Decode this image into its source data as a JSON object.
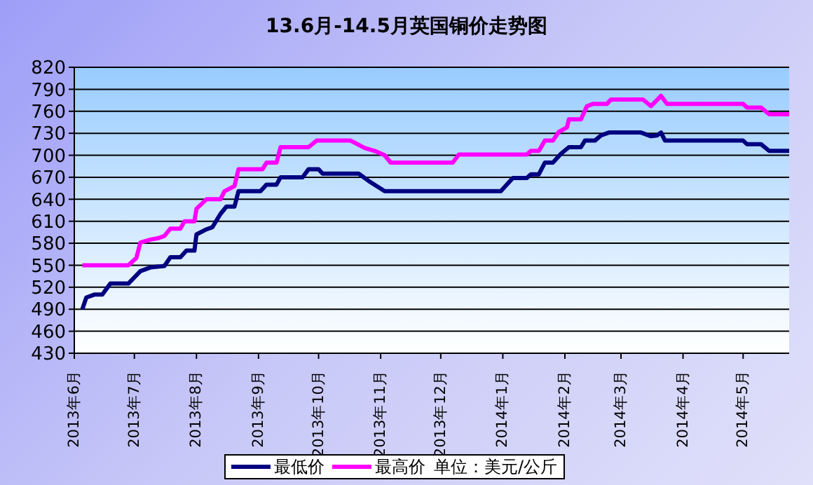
{
  "chart_data": {
    "type": "line",
    "title": "13.6月-14.5月英国铜价走势图",
    "annotations": [
      "单位：美元/公斤"
    ],
    "xlim": [
      "2013-06-01",
      "2014-05-24"
    ],
    "xticks": [
      {
        "value": "2013-06-01",
        "label": "2013年6月"
      },
      {
        "value": "2013-07-01",
        "label": "2013年7月"
      },
      {
        "value": "2013-08-01",
        "label": "2013年8月"
      },
      {
        "value": "2013-09-01",
        "label": "2013年9月"
      },
      {
        "value": "2013-10-01",
        "label": "2013年10月"
      },
      {
        "value": "2013-11-01",
        "label": "2013年11月"
      },
      {
        "value": "2013-12-01",
        "label": "2013年12月"
      },
      {
        "value": "2014-01-01",
        "label": "2014年1月"
      },
      {
        "value": "2014-02-01",
        "label": "2014年2月"
      },
      {
        "value": "2014-03-01",
        "label": "2014年3月"
      },
      {
        "value": "2014-04-01",
        "label": "2014年4月"
      },
      {
        "value": "2014-05-01",
        "label": "2014年5月"
      }
    ],
    "ylim": [
      430,
      820
    ],
    "yticks": [
      430,
      460,
      490,
      520,
      550,
      580,
      610,
      640,
      670,
      700,
      730,
      760,
      790,
      820
    ],
    "grid": "y",
    "legend": "bottom",
    "marker": "none",
    "line_style": "solid",
    "series": [
      {
        "name": "最低价",
        "color": "#000080",
        "x": [
          "2013-06-05",
          "2013-06-07",
          "2013-06-11",
          "2013-06-15",
          "2013-06-19",
          "2013-06-28",
          "2013-07-04",
          "2013-07-09",
          "2013-07-16",
          "2013-07-19",
          "2013-07-24",
          "2013-07-27",
          "2013-07-31",
          "2013-08-01",
          "2013-08-06",
          "2013-08-09",
          "2013-08-13",
          "2013-08-16",
          "2013-08-20",
          "2013-08-22",
          "2013-09-02",
          "2013-09-05",
          "2013-09-10",
          "2013-09-12",
          "2013-09-23",
          "2013-09-26",
          "2013-10-01",
          "2013-10-03",
          "2013-10-21",
          "2013-10-26",
          "2013-11-03",
          "2013-12-31",
          "2014-01-06",
          "2014-01-13",
          "2014-01-15",
          "2014-01-19",
          "2014-01-22",
          "2014-01-26",
          "2014-01-30",
          "2014-02-03",
          "2014-02-09",
          "2014-02-11",
          "2014-02-16",
          "2014-02-19",
          "2014-02-23",
          "2014-03-11",
          "2014-03-16",
          "2014-03-19",
          "2014-03-21",
          "2014-03-23",
          "2014-05-01",
          "2014-05-03",
          "2014-05-10",
          "2014-05-14",
          "2014-05-24"
        ],
        "values": [
          490,
          506,
          510,
          510,
          525,
          525,
          542,
          547,
          549,
          561,
          561,
          570,
          570,
          592,
          599,
          602,
          620,
          630,
          630,
          651,
          651,
          660,
          660,
          670,
          670,
          681,
          681,
          675,
          675,
          665,
          651,
          651,
          669,
          669,
          674,
          674,
          690,
          690,
          702,
          711,
          711,
          720,
          720,
          727,
          731,
          731,
          726,
          727,
          731,
          720,
          720,
          715,
          715,
          706,
          706
        ]
      },
      {
        "name": "最高价",
        "color": "#ff00ff",
        "x": [
          "2013-06-05",
          "2013-06-28",
          "2013-07-02",
          "2013-07-04",
          "2013-07-09",
          "2013-07-13",
          "2013-07-16",
          "2013-07-19",
          "2013-07-24",
          "2013-07-26",
          "2013-07-31",
          "2013-08-01",
          "2013-08-06",
          "2013-08-13",
          "2013-08-15",
          "2013-08-20",
          "2013-08-22",
          "2013-09-03",
          "2013-09-05",
          "2013-09-10",
          "2013-09-12",
          "2013-09-26",
          "2013-09-30",
          "2013-10-17",
          "2013-10-24",
          "2013-10-29",
          "2013-11-03",
          "2013-11-06",
          "2013-11-21",
          "2013-12-07",
          "2013-12-10",
          "2014-01-13",
          "2014-01-15",
          "2014-01-19",
          "2014-01-22",
          "2014-01-26",
          "2014-01-29",
          "2014-02-02",
          "2014-02-03",
          "2014-02-09",
          "2014-02-12",
          "2014-02-15",
          "2014-02-22",
          "2014-02-24",
          "2014-03-12",
          "2014-03-16",
          "2014-03-21",
          "2014-03-24",
          "2014-05-01",
          "2014-05-03",
          "2014-05-10",
          "2014-05-14",
          "2014-05-24"
        ],
        "values": [
          550,
          550,
          560,
          581,
          585,
          587,
          590,
          600,
          600,
          610,
          610,
          627,
          640,
          640,
          651,
          658,
          681,
          681,
          690,
          690,
          711,
          711,
          720,
          720,
          710,
          706,
          700,
          690,
          690,
          690,
          701,
          701,
          706,
          706,
          720,
          720,
          732,
          738,
          749,
          749,
          767,
          770,
          770,
          776,
          776,
          767,
          781,
          770,
          770,
          765,
          765,
          756,
          756
        ]
      }
    ]
  }
}
